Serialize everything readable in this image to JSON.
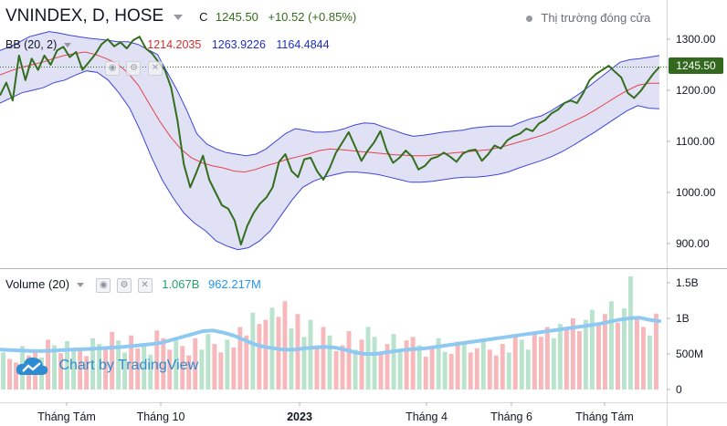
{
  "header": {
    "symbol": "VNINDEX, D, HOSE",
    "close_prefix": "C",
    "close_value": "1245.50",
    "change": "+10.52 (+0.85%)",
    "market_status": "Thị trường đóng cửa"
  },
  "bb_legend": {
    "label": "BB (20, 2)",
    "basis": "1214.2035",
    "upper": "1263.9226",
    "lower": "1164.4844"
  },
  "volume_legend": {
    "label": "Volume (20)",
    "volume": "1.067B",
    "ma": "962.217M"
  },
  "price_tag": "1245.50",
  "watermark": "Chart by TradingView",
  "colors": {
    "price_line": "#336e1d",
    "basis": "#e8414b",
    "band": "#3d45d9",
    "band_fill": "#dadcf3",
    "vol_up": "#b9e3cc",
    "vol_down": "#f6b8ba",
    "vol_ma": "#8fc9f2",
    "tag_bg": "#33691e"
  },
  "chart_data": [
    {
      "type": "line",
      "title": "VNINDEX, D, HOSE",
      "x_ticks": [
        "Tháng Tám",
        "Tháng 10",
        "2023",
        "Tháng 4",
        "Tháng 6",
        "Tháng Tám"
      ],
      "y_ticks": [
        900,
        1000,
        1100,
        1200,
        1300
      ],
      "ylim": [
        870,
        1330
      ],
      "current_value": 1245.5,
      "grid": false,
      "series": [
        {
          "name": "VNINDEX",
          "values": [
            1190,
            1215,
            1180,
            1268,
            1220,
            1262,
            1240,
            1268,
            1250,
            1278,
            1285,
            1265,
            1275,
            1240,
            1255,
            1270,
            1290,
            1300,
            1286,
            1294,
            1282,
            1298,
            1305,
            1282,
            1272,
            1255,
            1240,
            1205,
            1140,
            1055,
            1010,
            1040,
            1072,
            1025,
            1000,
            975,
            968,
            945,
            898,
            935,
            960,
            978,
            990,
            1010,
            1060,
            1075,
            1042,
            1030,
            1065,
            1068,
            1042,
            1025,
            1048,
            1078,
            1098,
            1118,
            1090,
            1062,
            1082,
            1098,
            1120,
            1082,
            1058,
            1068,
            1082,
            1070,
            1045,
            1052,
            1066,
            1070,
            1078,
            1070,
            1060,
            1076,
            1082,
            1084,
            1062,
            1075,
            1092,
            1086,
            1102,
            1110,
            1115,
            1125,
            1120,
            1135,
            1142,
            1155,
            1162,
            1175,
            1180,
            1175,
            1195,
            1220,
            1232,
            1240,
            1248,
            1236,
            1225,
            1195,
            1185,
            1198,
            1215,
            1232,
            1245.5
          ]
        },
        {
          "name": "BB upper",
          "values": [
            1278,
            1285,
            1295,
            1305,
            1310,
            1315,
            1312,
            1308,
            1305,
            1302,
            1300,
            1298,
            1295,
            1295,
            1290,
            1280,
            1270,
            1235,
            1200,
            1160,
            1115,
            1095,
            1085,
            1078,
            1075,
            1072,
            1075,
            1085,
            1100,
            1115,
            1125,
            1122,
            1118,
            1118,
            1120,
            1125,
            1132,
            1136,
            1135,
            1128,
            1122,
            1115,
            1110,
            1112,
            1115,
            1118,
            1120,
            1122,
            1126,
            1128,
            1130,
            1130,
            1130,
            1138,
            1145,
            1150,
            1160,
            1172,
            1182,
            1195,
            1210,
            1225,
            1240,
            1255,
            1260,
            1262,
            1265,
            1268
          ]
        },
        {
          "name": "BB basis",
          "values": [
            1230,
            1238,
            1245,
            1250,
            1255,
            1262,
            1268,
            1272,
            1275,
            1270,
            1262,
            1252,
            1235,
            1210,
            1175,
            1140,
            1110,
            1085,
            1068,
            1058,
            1052,
            1048,
            1042,
            1040,
            1045,
            1052,
            1058,
            1065,
            1070,
            1075,
            1082,
            1085,
            1084,
            1082,
            1080,
            1078,
            1076,
            1074,
            1073,
            1072,
            1072,
            1074,
            1076,
            1078,
            1080,
            1082,
            1084,
            1088,
            1094,
            1100,
            1106,
            1112,
            1120,
            1130,
            1140,
            1150,
            1162,
            1175,
            1188,
            1200,
            1210,
            1214,
            1214
          ]
        },
        {
          "name": "BB lower",
          "values": [
            1175,
            1185,
            1195,
            1200,
            1205,
            1215,
            1220,
            1230,
            1238,
            1235,
            1220,
            1195,
            1165,
            1120,
            1070,
            1025,
            990,
            960,
            940,
            925,
            905,
            895,
            888,
            892,
            905,
            925,
            955,
            985,
            1010,
            1022,
            1030,
            1035,
            1040,
            1040,
            1038,
            1035,
            1030,
            1025,
            1020,
            1020,
            1022,
            1025,
            1028,
            1030,
            1030,
            1032,
            1035,
            1040,
            1048,
            1055,
            1062,
            1070,
            1080,
            1092,
            1105,
            1118,
            1132,
            1146,
            1160,
            1170,
            1165,
            1164
          ]
        }
      ]
    },
    {
      "type": "bar",
      "title": "Volume (20)",
      "y_ticks": [
        "0",
        "500M",
        "1B",
        "1.5B"
      ],
      "ylim": [
        0,
        1650
      ],
      "unit": "M",
      "values": [
        520,
        430,
        380,
        610,
        480,
        560,
        450,
        700,
        620,
        510,
        680,
        540,
        590,
        470,
        720,
        640,
        560,
        810,
        690,
        520,
        760,
        580,
        640,
        490,
        830,
        720,
        560,
        690,
        610,
        480,
        720,
        560,
        780,
        640,
        520,
        700,
        590,
        880,
        760,
        1080,
        920,
        980,
        1150,
        1020,
        1240,
        860,
        1060,
        740,
        980,
        620,
        880,
        760,
        540,
        620,
        820,
        560,
        700,
        880,
        740,
        520,
        640,
        780,
        560,
        690,
        740,
        620,
        460,
        580,
        720,
        530,
        500,
        670,
        640,
        520,
        580,
        700,
        560,
        480,
        640,
        520,
        760,
        700,
        560,
        800,
        740,
        880,
        720,
        920,
        860,
        1000,
        820,
        980,
        1120,
        900,
        1060,
        1240,
        940,
        1140,
        1590,
        1000,
        880,
        760,
        1067
      ],
      "directions": "udduddududuudduudduudduuddduddduudduddduddudduduudduddduduudduuddudduuddudduddduduuddduuddduudduduudd",
      "ma": [
        560,
        555,
        548,
        542,
        540,
        545,
        552,
        560,
        565,
        570,
        580,
        588,
        598,
        610,
        625,
        640,
        660,
        700,
        740,
        780,
        820,
        830,
        800,
        760,
        700,
        640,
        600,
        580,
        560,
        560,
        580,
        590,
        600,
        590,
        560,
        520,
        500,
        500,
        520,
        540,
        560,
        570,
        580,
        600,
        620,
        640,
        660,
        680,
        700,
        720,
        740,
        760,
        780,
        800,
        820,
        840,
        860,
        880,
        900,
        920,
        950,
        980,
        1000,
        1010,
        980,
        962
      ]
    }
  ]
}
